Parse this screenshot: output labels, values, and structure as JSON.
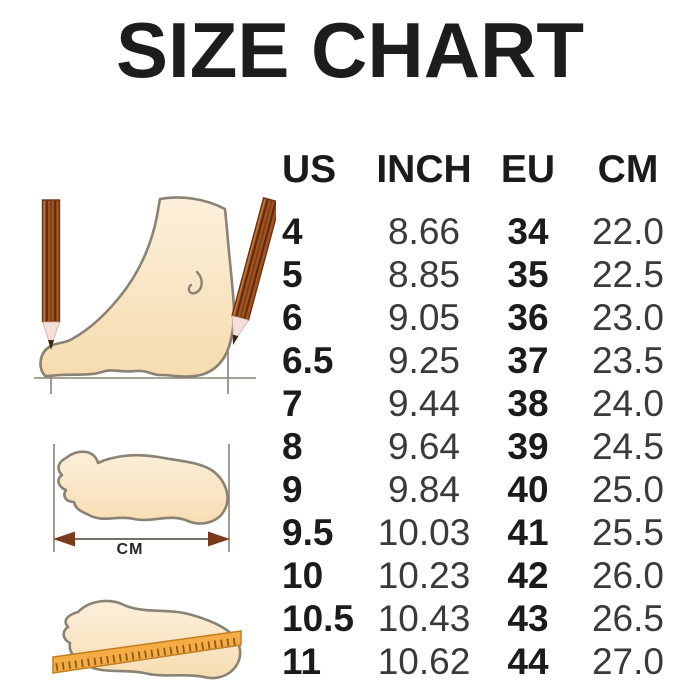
{
  "title": "SIZE CHART",
  "table": {
    "headers": [
      "US",
      "INCH",
      "EU",
      "CM"
    ],
    "rows": [
      [
        "4",
        "8.66",
        "34",
        "22.0"
      ],
      [
        "5",
        "8.85",
        "35",
        "22.5"
      ],
      [
        "6",
        "9.05",
        "36",
        "23.0"
      ],
      [
        "6.5",
        "9.25",
        "37",
        "23.5"
      ],
      [
        "7",
        "9.44",
        "38",
        "24.0"
      ],
      [
        "8",
        "9.64",
        "39",
        "24.5"
      ],
      [
        "9",
        "9.84",
        "40",
        "25.0"
      ],
      [
        "9.5",
        "10.03",
        "41",
        "25.5"
      ],
      [
        "10",
        "10.23",
        "42",
        "26.0"
      ],
      [
        "10.5",
        "10.43",
        "43",
        "26.5"
      ],
      [
        "11",
        "10.62",
        "44",
        "27.0"
      ]
    ]
  },
  "illustrations": {
    "cm_label": "CM"
  },
  "colors": {
    "text_primary": "#1b1b1b",
    "text_secondary": "#3a3a3a",
    "foot_fill_light": "#fcefdb",
    "foot_fill_dark": "#f6dcae",
    "foot_outline": "#8a8274",
    "pencil_brown": "#a0521f",
    "pencil_stripe": "#5e2a0d",
    "pencil_wood": "#f7dfd9",
    "pencil_lead": "#3e2412",
    "ruler_orange": "#f5ac45",
    "ruler_border": "#c17f24",
    "ruler_ticks": "#8c5a14",
    "arrow_head": "#7b3a1d"
  },
  "chart_data": {
    "type": "table",
    "title": "SIZE CHART",
    "columns": [
      "US",
      "INCH",
      "EU",
      "CM"
    ],
    "rows": [
      [
        "4",
        "8.66",
        "34",
        "22.0"
      ],
      [
        "5",
        "8.85",
        "35",
        "22.5"
      ],
      [
        "6",
        "9.05",
        "36",
        "23.0"
      ],
      [
        "6.5",
        "9.25",
        "37",
        "23.5"
      ],
      [
        "7",
        "9.44",
        "38",
        "24.0"
      ],
      [
        "8",
        "9.64",
        "39",
        "24.5"
      ],
      [
        "9",
        "9.84",
        "40",
        "25.0"
      ],
      [
        "9.5",
        "10.03",
        "41",
        "25.5"
      ],
      [
        "10",
        "10.23",
        "42",
        "26.0"
      ],
      [
        "10.5",
        "10.43",
        "43",
        "26.5"
      ],
      [
        "11",
        "10.62",
        "44",
        "27.0"
      ]
    ]
  }
}
